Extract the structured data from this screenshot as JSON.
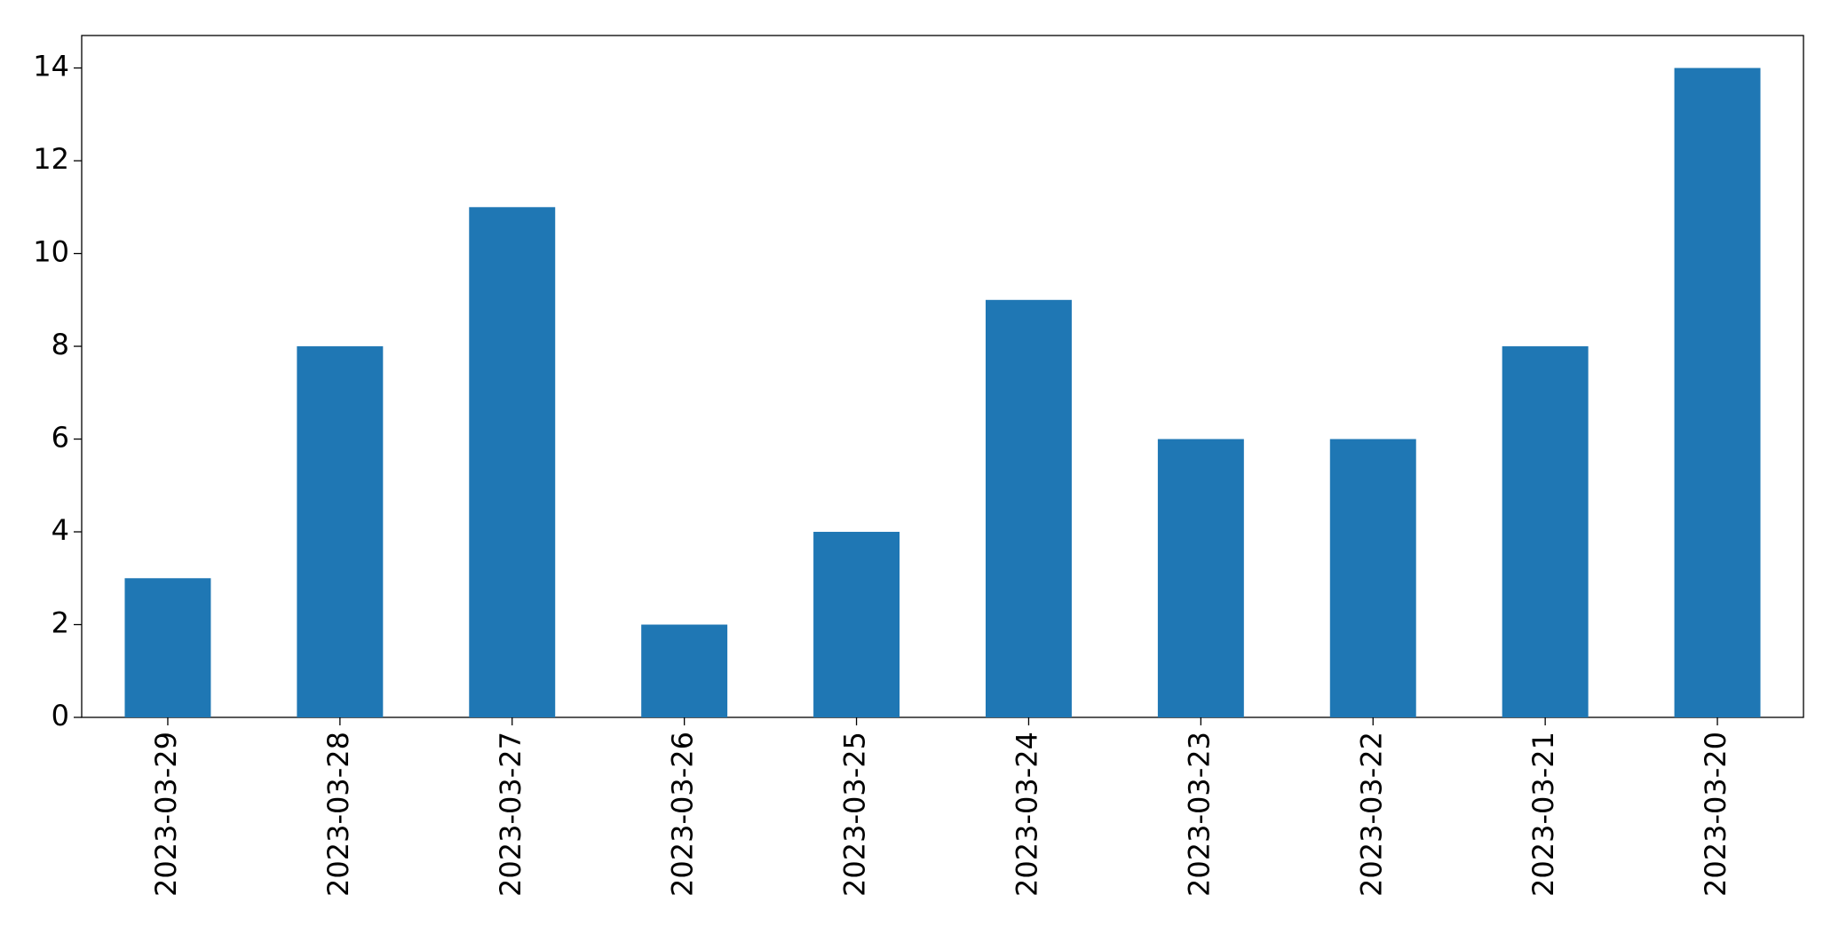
{
  "chart_data": {
    "type": "bar",
    "categories": [
      "2023-03-29",
      "2023-03-28",
      "2023-03-27",
      "2023-03-26",
      "2023-03-25",
      "2023-03-24",
      "2023-03-23",
      "2023-03-22",
      "2023-03-21",
      "2023-03-20"
    ],
    "values": [
      3,
      8,
      11,
      2,
      4,
      9,
      6,
      6,
      8,
      14
    ],
    "color": "#1f77b4",
    "ylim": [
      0,
      14.7
    ],
    "yticks": [
      0,
      2,
      4,
      6,
      8,
      10,
      12,
      14
    ],
    "grid": false
  }
}
